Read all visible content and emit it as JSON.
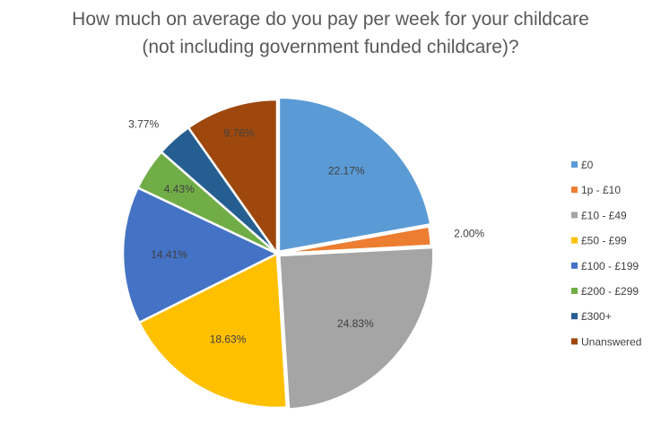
{
  "chart_data": {
    "type": "pie",
    "title_lines": [
      "How much on average do you pay per week for your childcare",
      "(not including government funded childcare)?"
    ],
    "categories": [
      "£0",
      "1p - £10",
      "£10 - £49",
      "£50 - £99",
      "£100 - £199",
      "£200 - £299",
      "£300+",
      "Unanswered"
    ],
    "values": [
      22.17,
      2.0,
      24.83,
      18.63,
      14.41,
      4.43,
      3.77,
      9.76
    ],
    "labels": [
      "22.17%",
      "2.00%",
      "24.83%",
      "18.63%",
      "14.41%",
      "4.43%",
      "3.77%",
      "9.76%"
    ],
    "colors": [
      "#5B9BD5",
      "#ED7D31",
      "#A5A5A5",
      "#FFC000",
      "#4472C4",
      "#70AD47",
      "#255E91",
      "#9E480E"
    ],
    "legend_position": "right"
  }
}
